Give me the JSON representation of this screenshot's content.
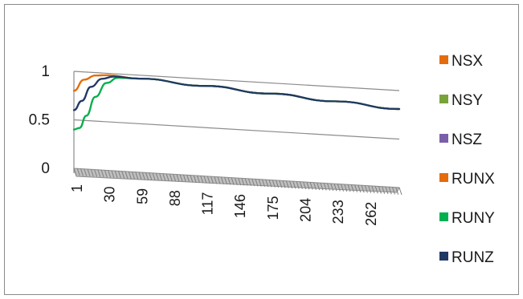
{
  "chart_data": {
    "type": "line",
    "style": "3d",
    "categories_shown": [
      "1",
      "30",
      "59",
      "88",
      "117",
      "146",
      "175",
      "204",
      "233",
      "262"
    ],
    "x_range": [
      1,
      290
    ],
    "yticks": [
      "0",
      "0.5",
      "1"
    ],
    "ylim": [
      0,
      1
    ],
    "grid": true,
    "legend_position": "right",
    "series": [
      {
        "name": "NSX",
        "color": "#e46c0a",
        "points": [
          [
            1,
            0.8
          ],
          [
            10,
            0.92
          ],
          [
            20,
            0.97
          ],
          [
            30,
            0.98
          ],
          [
            59,
            0.965
          ],
          [
            117,
            0.93
          ],
          [
            175,
            0.89
          ],
          [
            233,
            0.85
          ],
          [
            290,
            0.81
          ]
        ]
      },
      {
        "name": "NSY",
        "color": "#77a33a",
        "points": [
          [
            1,
            0.4
          ],
          [
            6,
            0.42
          ],
          [
            12,
            0.55
          ],
          [
            20,
            0.75
          ],
          [
            30,
            0.9
          ],
          [
            40,
            0.96
          ],
          [
            59,
            0.965
          ],
          [
            117,
            0.93
          ],
          [
            175,
            0.89
          ],
          [
            233,
            0.85
          ],
          [
            290,
            0.81
          ]
        ]
      },
      {
        "name": "NSZ",
        "color": "#7a5ea8",
        "points": [
          [
            1,
            0.6
          ],
          [
            8,
            0.7
          ],
          [
            16,
            0.85
          ],
          [
            26,
            0.94
          ],
          [
            36,
            0.97
          ],
          [
            59,
            0.965
          ],
          [
            117,
            0.93
          ],
          [
            175,
            0.89
          ],
          [
            233,
            0.85
          ],
          [
            290,
            0.81
          ]
        ]
      },
      {
        "name": "RUNX",
        "color": "#e46c0a",
        "points": [
          [
            1,
            0.8
          ],
          [
            10,
            0.92
          ],
          [
            20,
            0.97
          ],
          [
            30,
            0.98
          ],
          [
            59,
            0.965
          ],
          [
            117,
            0.93
          ],
          [
            175,
            0.89
          ],
          [
            233,
            0.85
          ],
          [
            290,
            0.81
          ]
        ]
      },
      {
        "name": "RUNY",
        "color": "#00b050",
        "points": [
          [
            1,
            0.4
          ],
          [
            6,
            0.42
          ],
          [
            12,
            0.55
          ],
          [
            20,
            0.75
          ],
          [
            30,
            0.9
          ],
          [
            40,
            0.96
          ],
          [
            59,
            0.965
          ],
          [
            117,
            0.93
          ],
          [
            175,
            0.89
          ],
          [
            233,
            0.85
          ],
          [
            290,
            0.81
          ]
        ]
      },
      {
        "name": "RUNZ",
        "color": "#1f3864",
        "points": [
          [
            1,
            0.6
          ],
          [
            8,
            0.7
          ],
          [
            16,
            0.85
          ],
          [
            26,
            0.94
          ],
          [
            36,
            0.97
          ],
          [
            59,
            0.965
          ],
          [
            117,
            0.93
          ],
          [
            175,
            0.89
          ],
          [
            233,
            0.85
          ],
          [
            290,
            0.81
          ]
        ]
      }
    ]
  }
}
